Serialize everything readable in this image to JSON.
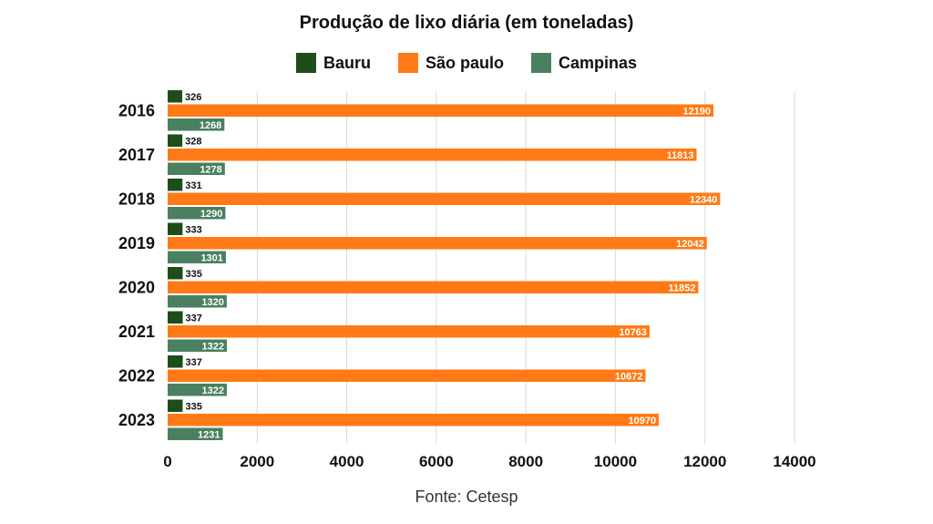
{
  "chart_data": {
    "type": "bar",
    "orientation": "horizontal",
    "title": "Produção de lixo diária (em toneladas)",
    "categories": [
      "2016",
      "2017",
      "2018",
      "2019",
      "2020",
      "2021",
      "2022",
      "2023"
    ],
    "series": [
      {
        "name": "Bauru",
        "color": "#1e4d1a",
        "values": [
          326,
          328,
          331,
          333,
          335,
          337,
          337,
          335
        ]
      },
      {
        "name": "São paulo",
        "color": "#ff7a16",
        "values": [
          12190,
          11813,
          12340,
          12042,
          11852,
          10763,
          10672,
          10970
        ]
      },
      {
        "name": "Campinas",
        "color": "#4a8060",
        "values": [
          1268,
          1278,
          1290,
          1301,
          1320,
          1322,
          1322,
          1231
        ]
      }
    ],
    "xlim": [
      0,
      14000
    ],
    "xticks": [
      "0",
      "2000",
      "4000",
      "6000",
      "8000",
      "10000",
      "12000",
      "14000"
    ],
    "grid": true,
    "legend_position": "top"
  },
  "footer": {
    "source": "Fonte: Cetesp"
  }
}
